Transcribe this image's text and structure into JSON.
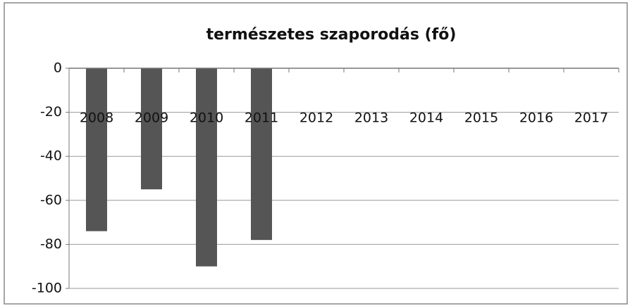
{
  "chart_data": {
    "type": "bar",
    "title": "természetes szaporodás (fő)",
    "categories": [
      "2008",
      "2009",
      "2010",
      "2011",
      "2012",
      "2013",
      "2014",
      "2015",
      "2016",
      "2017"
    ],
    "values": [
      -74,
      -55,
      -90,
      -78,
      null,
      null,
      null,
      null,
      null,
      null
    ],
    "color": "#555555",
    "ylim": [
      -100,
      0
    ],
    "yticks": [
      0,
      -20,
      -40,
      -60,
      -80,
      -100
    ],
    "grid": true
  }
}
